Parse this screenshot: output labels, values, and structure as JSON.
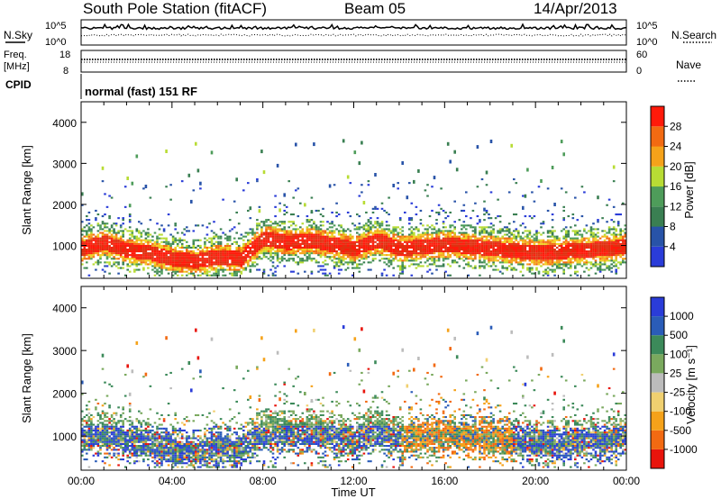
{
  "header": {
    "station": "South Pole Station (fitACF)",
    "beam": "Beam 05",
    "date": "14/Apr/2013"
  },
  "top_panels": {
    "nsky_label": "N.Sky",
    "nsearch_label": "N.Search",
    "nsky_ticks": [
      "10^5",
      "10^0"
    ],
    "nsearch_ticks": [
      "10^5",
      "10^0"
    ],
    "freq_label": "Freq.",
    "freq_unit": "[MHz]",
    "freq_ticks": [
      "18",
      "8"
    ],
    "nave_label": "Nave",
    "nave_ticks": [
      "60",
      "0"
    ],
    "cpid_label": "CPID",
    "cpid_value": "normal (fast) 151 RF"
  },
  "colors": {
    "power": [
      "#2a3cd8",
      "#2853a8",
      "#3a7f52",
      "#4e9c5a",
      "#b8dc34",
      "#f0d020",
      "#f5a21a",
      "#f26a12",
      "#e03010",
      "#ff1a0a"
    ],
    "velocity": [
      "#e8140c",
      "#f26a12",
      "#f5a21a",
      "#f0d070",
      "#bcbcbc",
      "#7aa95e",
      "#3c8a5a",
      "#2a5cb8",
      "#2a3cd8"
    ]
  },
  "chart_data": [
    {
      "type": "heatmap",
      "name": "power",
      "ylabel": "Slant Range [km]",
      "ylim": [
        200,
        4500
      ],
      "yticks": [
        "1000",
        "2000",
        "3000",
        "4000"
      ],
      "xlabel": "Time UT",
      "xticks": [
        "00:00",
        "04:00",
        "08:00",
        "12:00",
        "16:00",
        "20:00",
        "00:00"
      ],
      "xlim": [
        0,
        24
      ],
      "colorbar": {
        "label": "Power [dB]",
        "ticks": [
          "4",
          "8",
          "12",
          "16",
          "20",
          "24",
          "28"
        ],
        "range": [
          0,
          32
        ]
      },
      "main_echo_band_km": [
        [
          0.0,
          900
        ],
        [
          1.0,
          1050
        ],
        [
          2.0,
          850
        ],
        [
          3.0,
          800
        ],
        [
          4.0,
          650
        ],
        [
          5.0,
          600
        ],
        [
          6.0,
          700
        ],
        [
          7.0,
          650
        ],
        [
          8.0,
          1150
        ],
        [
          9.0,
          1050
        ],
        [
          10.0,
          1100
        ],
        [
          11.0,
          1000
        ],
        [
          12.0,
          900
        ],
        [
          13.0,
          1100
        ],
        [
          14.0,
          900
        ],
        [
          16.0,
          1000
        ],
        [
          18.0,
          900
        ],
        [
          20.0,
          800
        ],
        [
          22.0,
          850
        ],
        [
          24.0,
          950
        ]
      ]
    },
    {
      "type": "heatmap",
      "name": "velocity",
      "ylabel": "Slant Range [km]",
      "ylim": [
        200,
        4500
      ],
      "yticks": [
        "1000",
        "2000",
        "3000",
        "4000"
      ],
      "xlabel": "Time UT",
      "xticks": [
        "00:00",
        "04:00",
        "08:00",
        "12:00",
        "16:00",
        "20:00",
        "00:00"
      ],
      "xlim": [
        0,
        24
      ],
      "colorbar": {
        "label": "Velocity [m s⁻¹]",
        "ticks": [
          "1000",
          "500",
          "100",
          "25",
          "-25",
          "-100",
          "-500",
          "-1000"
        ],
        "range": [
          -1000,
          1000
        ]
      }
    }
  ]
}
